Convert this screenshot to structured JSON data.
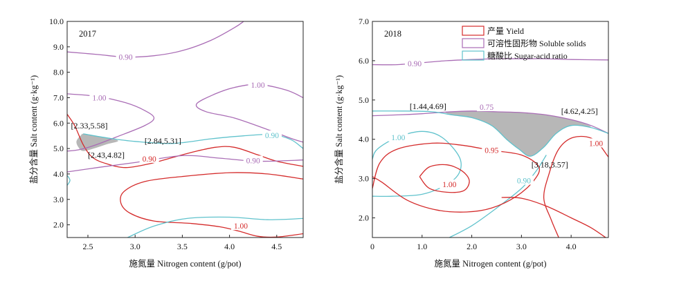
{
  "chart_data": [
    {
      "type": "contour",
      "panel_label": "2017",
      "xlabel": "施氮量 Nitrogen content (g/pot)",
      "ylabel": "盐分含量 Salt content (g·kg⁻¹)",
      "xlim": [
        2.28,
        4.78
      ],
      "ylim": [
        1.5,
        10.0
      ],
      "xticks": [
        "2.5",
        "3.0",
        "3.5",
        "4.0",
        "4.5"
      ],
      "xtick_values": [
        2.5,
        3.0,
        3.5,
        4.0,
        4.5
      ],
      "yticks": [
        "2.0",
        "3.0",
        "4.0",
        "5.0",
        "6.0",
        "7.0",
        "8.0",
        "9.0",
        "10.0"
      ],
      "ytick_values": [
        2,
        3,
        4,
        5,
        6,
        7,
        8,
        9,
        10
      ],
      "colors": {
        "yield": "#d42a2a",
        "soluble": "#a96cb5",
        "sugar": "#5fc2cc",
        "overlap": "#b7b7b7"
      },
      "series": [
        {
          "kind": "yield",
          "level_label": "0.90",
          "label_at": [
            3.15,
            4.6
          ],
          "points": [
            [
              2.28,
              6.35
            ],
            [
              2.36,
              5.9
            ],
            [
              2.45,
              5.15
            ],
            [
              2.55,
              4.65
            ],
            [
              2.7,
              4.4
            ],
            [
              2.9,
              4.25
            ],
            [
              3.15,
              4.4
            ],
            [
              3.4,
              4.65
            ],
            [
              3.6,
              4.85
            ],
            [
              3.85,
              5.05
            ],
            [
              4.05,
              5.05
            ],
            [
              4.3,
              4.75
            ],
            [
              4.5,
              4.5
            ],
            [
              4.78,
              4.3
            ]
          ]
        },
        {
          "kind": "yield",
          "level_label": "1.00",
          "label_at": [
            4.12,
            1.96
          ],
          "points": [
            [
              4.78,
              1.65
            ],
            [
              4.5,
              1.52
            ],
            [
              4.3,
              1.55
            ],
            [
              4.1,
              1.75
            ],
            [
              3.9,
              1.92
            ],
            [
              3.6,
              2.05
            ],
            [
              3.2,
              2.15
            ],
            [
              2.95,
              2.45
            ],
            [
              2.85,
              2.85
            ],
            [
              2.88,
              3.3
            ],
            [
              3.1,
              3.7
            ],
            [
              3.5,
              3.9
            ],
            [
              4.0,
              4.05
            ],
            [
              4.4,
              4.0
            ],
            [
              4.78,
              3.8
            ]
          ]
        },
        {
          "kind": "soluble",
          "level_label": "0.90",
          "label_at": [
            2.9,
            8.6
          ],
          "points": [
            [
              2.28,
              8.8
            ],
            [
              2.6,
              8.7
            ],
            [
              2.9,
              8.6
            ],
            [
              3.2,
              8.65
            ],
            [
              3.5,
              8.85
            ],
            [
              3.8,
              9.25
            ],
            [
              4.05,
              9.75
            ],
            [
              4.15,
              10.0
            ]
          ]
        },
        {
          "kind": "soluble",
          "level_label": "1.00",
          "label_at": [
            2.62,
            7.0
          ],
          "points": [
            [
              2.28,
              7.15
            ],
            [
              2.6,
              7.05
            ],
            [
              2.9,
              6.8
            ],
            [
              3.1,
              6.5
            ],
            [
              3.2,
              6.2
            ],
            [
              3.1,
              5.9
            ],
            [
              2.8,
              5.45
            ],
            [
              2.55,
              5.1
            ],
            [
              2.4,
              4.95
            ],
            [
              2.28,
              4.9
            ]
          ]
        },
        {
          "kind": "soluble",
          "level_label": "1.00",
          "label_at": [
            4.3,
            7.5
          ],
          "points": [
            [
              4.78,
              7.0
            ],
            [
              4.6,
              7.3
            ],
            [
              4.3,
              7.52
            ],
            [
              4.05,
              7.4
            ],
            [
              3.85,
              7.15
            ],
            [
              3.65,
              6.75
            ],
            [
              3.75,
              6.45
            ],
            [
              4.05,
              6.2
            ],
            [
              4.4,
              5.75
            ],
            [
              4.65,
              5.4
            ],
            [
              4.78,
              5.25
            ]
          ]
        },
        {
          "kind": "soluble",
          "level_label": "0.90",
          "label_at": [
            4.25,
            4.53
          ],
          "points": [
            [
              2.28,
              4.08
            ],
            [
              2.6,
              4.25
            ],
            [
              3.0,
              4.45
            ],
            [
              3.5,
              4.72
            ],
            [
              3.9,
              4.62
            ],
            [
              4.3,
              4.5
            ],
            [
              4.78,
              4.55
            ]
          ]
        },
        {
          "kind": "sugar",
          "level_label": "0.90",
          "label_at": [
            4.45,
            5.52
          ],
          "points": [
            [
              2.45,
              5.58
            ],
            [
              2.7,
              5.42
            ],
            [
              3.0,
              5.28
            ],
            [
              3.4,
              5.2
            ],
            [
              3.8,
              5.38
            ],
            [
              4.15,
              5.5
            ],
            [
              4.45,
              5.55
            ],
            [
              4.65,
              5.35
            ],
            [
              4.78,
              5.0
            ]
          ]
        },
        {
          "kind": "sugar",
          "level_label": "",
          "label_at": null,
          "points": [
            [
              2.92,
              1.5
            ],
            [
              3.2,
              1.95
            ],
            [
              3.55,
              2.25
            ],
            [
              4.0,
              2.3
            ],
            [
              4.4,
              2.2
            ],
            [
              4.78,
              2.25
            ]
          ]
        },
        {
          "kind": "sugar",
          "level_label": "",
          "label_at": null,
          "points": [
            [
              2.28,
              3.95
            ],
            [
              2.31,
              3.75
            ],
            [
              2.28,
              3.55
            ]
          ]
        }
      ],
      "overlap_region": [
        [
          2.44,
          5.58
        ],
        [
          2.7,
          5.42
        ],
        [
          2.82,
          5.3
        ],
        [
          2.7,
          5.17
        ],
        [
          2.58,
          5.02
        ],
        [
          2.45,
          4.9
        ],
        [
          2.4,
          5.05
        ],
        [
          2.38,
          5.3
        ]
      ],
      "annotations": [
        {
          "text": "[2.33,5.58]",
          "at": [
            2.32,
            5.9
          ]
        },
        {
          "text": "[2.84,5.31]",
          "at": [
            3.1,
            5.3
          ]
        },
        {
          "text": "[2.43,4.82]",
          "at": [
            2.5,
            4.75
          ]
        }
      ]
    },
    {
      "type": "contour",
      "panel_label": "2018",
      "xlabel": "施氮量 Nitrogen content (g/pot)",
      "ylabel": "盐分含量 Salt content (g·kg⁻¹)",
      "xlim": [
        0,
        4.75
      ],
      "ylim": [
        1.5,
        7.0
      ],
      "xticks": [
        "0",
        "1.0",
        "2.0",
        "3.0",
        "4.0"
      ],
      "xtick_values": [
        0,
        1,
        2,
        3,
        4
      ],
      "yticks": [
        "2.0",
        "3.0",
        "4.0",
        "5.0",
        "6.0",
        "7.0"
      ],
      "ytick_values": [
        2,
        3,
        4,
        5,
        6,
        7
      ],
      "legend": {
        "placement": "top-right",
        "entries": [
          {
            "kind": "yield",
            "label": "产量 Yield"
          },
          {
            "kind": "soluble",
            "label": "可溶性固形物 Soluble solids"
          },
          {
            "kind": "sugar",
            "label": "糖酸比 Sugar-acid ratio"
          }
        ]
      },
      "colors": {
        "yield": "#d42a2a",
        "soluble": "#a96cb5",
        "sugar": "#5fc2cc",
        "overlap": "#b7b7b7"
      },
      "series": [
        {
          "kind": "soluble",
          "level_label": "0.90",
          "label_at": [
            0.85,
            5.93
          ],
          "points": [
            [
              0,
              5.9
            ],
            [
              0.5,
              5.9
            ],
            [
              1.0,
              5.95
            ],
            [
              1.5,
              6.0
            ],
            [
              2.0,
              6.03
            ],
            [
              2.5,
              6.05
            ],
            [
              3.0,
              6.05
            ],
            [
              3.5,
              6.05
            ],
            [
              4.0,
              6.03
            ],
            [
              4.75,
              6.02
            ]
          ]
        },
        {
          "kind": "soluble",
          "level_label": "0.75",
          "label_at": [
            2.3,
            4.82
          ],
          "points": [
            [
              0,
              4.6
            ],
            [
              0.5,
              4.62
            ],
            [
              1.0,
              4.65
            ],
            [
              1.44,
              4.69
            ],
            [
              2.0,
              4.72
            ],
            [
              2.5,
              4.7
            ],
            [
              3.0,
              4.68
            ],
            [
              3.5,
              4.62
            ],
            [
              4.0,
              4.5
            ],
            [
              4.4,
              4.35
            ],
            [
              4.75,
              4.15
            ]
          ]
        },
        {
          "kind": "sugar",
          "level_label": "",
          "label_at": null,
          "points": [
            [
              0,
              4.72
            ],
            [
              0.6,
              4.72
            ],
            [
              1.2,
              4.7
            ],
            [
              1.6,
              4.62
            ],
            [
              2.0,
              4.55
            ],
            [
              2.4,
              4.35
            ],
            [
              2.7,
              4.0
            ],
            [
              2.95,
              3.75
            ],
            [
              3.18,
              3.57
            ],
            [
              3.45,
              3.8
            ],
            [
              3.7,
              4.15
            ],
            [
              4.0,
              4.35
            ],
            [
              4.4,
              4.3
            ],
            [
              4.75,
              4.15
            ]
          ]
        },
        {
          "kind": "sugar",
          "level_label": "1.00",
          "label_at": [
            0.52,
            4.05
          ],
          "points": [
            [
              0,
              3.5
            ],
            [
              0.1,
              3.75
            ],
            [
              0.5,
              4.05
            ],
            [
              1.0,
              4.2
            ],
            [
              1.4,
              4.05
            ],
            [
              1.75,
              3.55
            ],
            [
              1.75,
              3.15
            ],
            [
              1.5,
              2.85
            ],
            [
              1.0,
              2.6
            ],
            [
              0.4,
              2.55
            ],
            [
              0,
              2.55
            ]
          ]
        },
        {
          "kind": "sugar",
          "level_label": "0.90",
          "label_at": [
            3.05,
            2.95
          ],
          "points": [
            [
              1.55,
              1.5
            ],
            [
              2.0,
              1.8
            ],
            [
              2.5,
              2.25
            ],
            [
              3.0,
              2.75
            ],
            [
              3.3,
              3.2
            ],
            [
              3.5,
              3.6
            ]
          ]
        },
        {
          "kind": "yield",
          "level_label": "0.95",
          "label_at": [
            2.4,
            3.72
          ],
          "points": [
            [
              0,
              2.75
            ],
            [
              0.15,
              3.4
            ],
            [
              0.5,
              3.75
            ],
            [
              1.2,
              3.9
            ],
            [
              1.8,
              3.85
            ],
            [
              2.4,
              3.72
            ],
            [
              3.0,
              3.6
            ],
            [
              3.35,
              3.3
            ],
            [
              3.25,
              2.95
            ],
            [
              2.9,
              2.55
            ],
            [
              2.4,
              2.25
            ],
            [
              1.9,
              2.15
            ],
            [
              1.3,
              2.2
            ],
            [
              0.7,
              2.45
            ],
            [
              0.2,
              2.9
            ],
            [
              0,
              3.05
            ]
          ]
        },
        {
          "kind": "yield",
          "level_label": "1.00",
          "label_at": [
            1.55,
            2.85
          ],
          "points": [
            [
              0.95,
              3.05
            ],
            [
              1.15,
              3.3
            ],
            [
              1.5,
              3.35
            ],
            [
              1.8,
              3.2
            ],
            [
              1.95,
              2.95
            ],
            [
              1.85,
              2.7
            ],
            [
              1.55,
              2.65
            ],
            [
              1.15,
              2.75
            ],
            [
              0.95,
              3.05
            ]
          ]
        },
        {
          "kind": "yield",
          "level_label": "1.00",
          "label_at": [
            4.5,
            3.9
          ],
          "points": [
            [
              3.75,
              1.5
            ],
            [
              3.6,
              1.95
            ],
            [
              3.45,
              2.5
            ],
            [
              3.55,
              3.1
            ],
            [
              3.75,
              3.75
            ],
            [
              4.05,
              4.05
            ],
            [
              4.45,
              4.0
            ],
            [
              4.75,
              3.55
            ]
          ]
        },
        {
          "kind": "yield",
          "level_label": "",
          "label_at": null,
          "points": [
            [
              2.6,
              2.52
            ],
            [
              3.0,
              2.5
            ],
            [
              3.5,
              2.3
            ],
            [
              4.0,
              2.0
            ],
            [
              4.4,
              1.75
            ],
            [
              4.75,
              1.45
            ]
          ]
        }
      ],
      "overlap_region": [
        [
          1.44,
          4.69
        ],
        [
          2.0,
          4.72
        ],
        [
          2.5,
          4.7
        ],
        [
          3.0,
          4.68
        ],
        [
          3.5,
          4.62
        ],
        [
          4.0,
          4.5
        ],
        [
          4.4,
          4.32
        ],
        [
          4.0,
          4.35
        ],
        [
          3.7,
          4.15
        ],
        [
          3.45,
          3.8
        ],
        [
          3.18,
          3.57
        ],
        [
          2.95,
          3.75
        ],
        [
          2.7,
          4.0
        ],
        [
          2.4,
          4.35
        ],
        [
          2.0,
          4.55
        ],
        [
          1.6,
          4.62
        ]
      ],
      "annotations": [
        {
          "text": "[1.44,4.69]",
          "at": [
            0.75,
            4.84
          ]
        },
        {
          "text": "[4.62,4.25]",
          "at": [
            3.8,
            4.72
          ]
        },
        {
          "text": "[3.18,3.57]",
          "at": [
            3.2,
            3.35
          ]
        }
      ]
    }
  ]
}
